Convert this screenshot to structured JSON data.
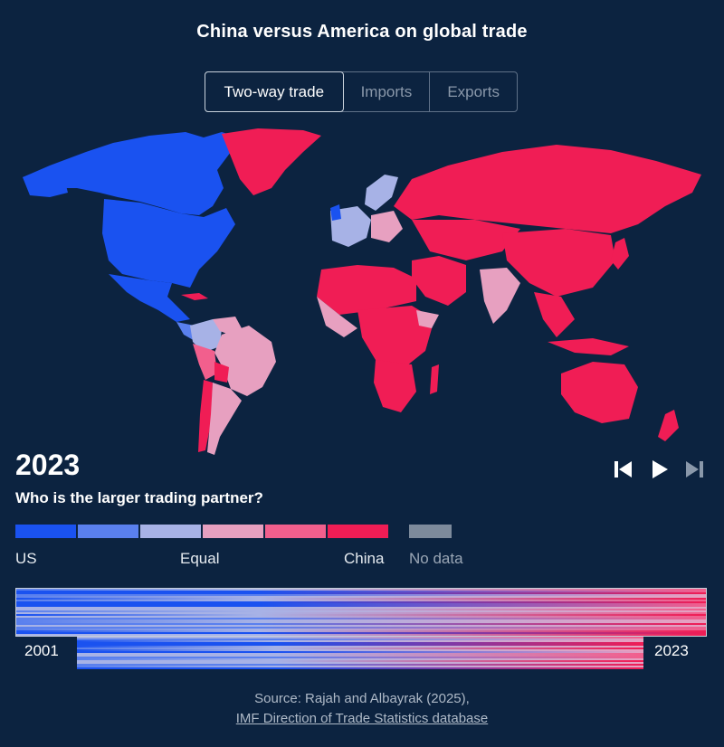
{
  "title": "China versus America on global trade",
  "tabs": [
    {
      "label": "Two-way trade",
      "active": true
    },
    {
      "label": "Imports",
      "active": false
    },
    {
      "label": "Exports",
      "active": false
    }
  ],
  "year": "2023",
  "question": "Who is the larger trading partner?",
  "controls": {
    "rewind_icon": "skip-back-icon",
    "play_icon": "play-icon",
    "end_icon": "skip-forward-icon"
  },
  "legend": {
    "colors": [
      "#1a52f0",
      "#5a80ee",
      "#a7b2e6",
      "#e7a0c0",
      "#f25f8d",
      "#f01d55"
    ],
    "nodata_color": "#7d8a9b",
    "labels": {
      "us": "US",
      "equal": "Equal",
      "china": "China",
      "nodata": "No data"
    }
  },
  "map": {
    "colors": {
      "us_strong": "#1a52f0",
      "us_mid": "#5a80ee",
      "equal": "#a7b2e6",
      "china_light": "#e7a0c0",
      "china_mid": "#f25f8d",
      "china_strong": "#f01d55"
    }
  },
  "timeline": {
    "start": "2001",
    "end": "2023"
  },
  "source": {
    "line1": "Source: Rajah and Albayrak (2025),",
    "link": "IMF Direction of Trade Statistics database"
  }
}
